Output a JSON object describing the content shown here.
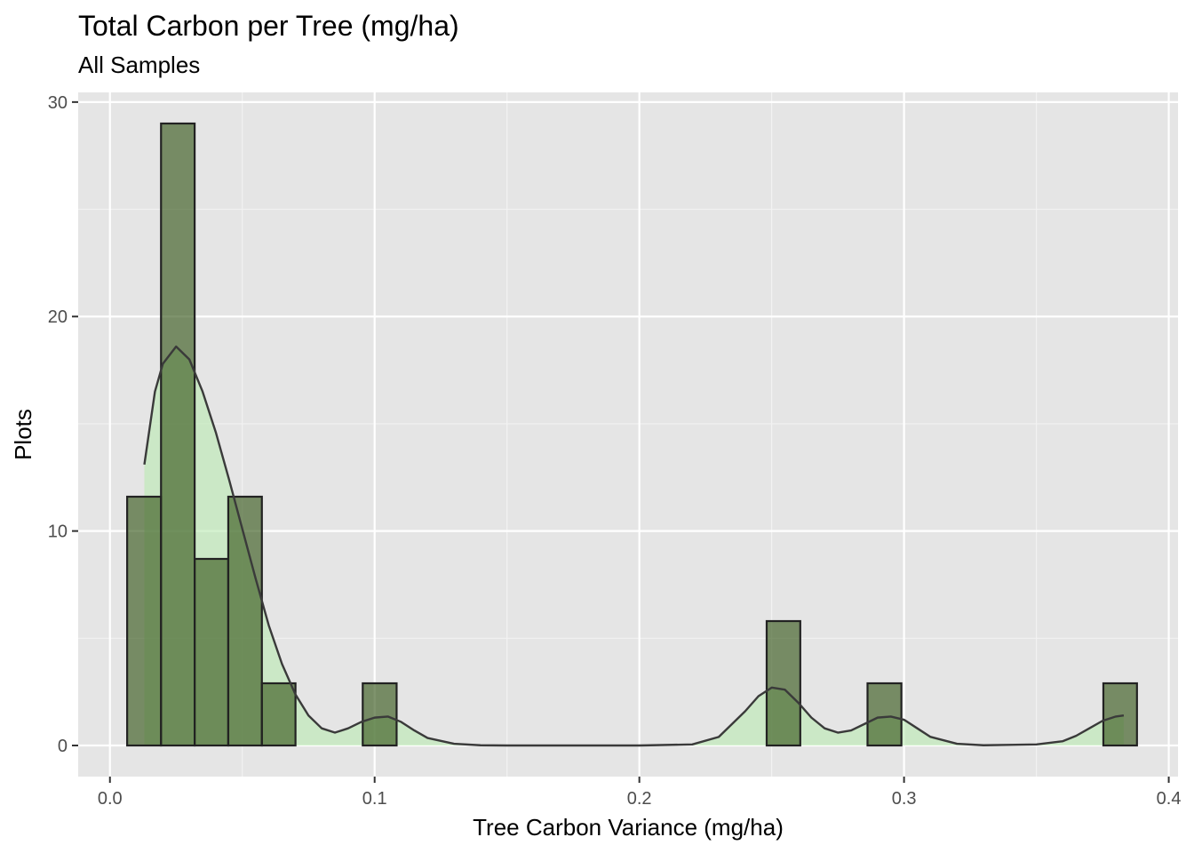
{
  "chart_data": {
    "type": "histogram",
    "title": "Total Carbon per Tree (mg/ha)",
    "subtitle": "All Samples",
    "xlabel": "Tree Carbon Variance (mg/ha)",
    "ylabel": "Plots",
    "xlim": [
      -0.012,
      0.4035
    ],
    "ylim": [
      -1.45,
      30.45
    ],
    "x_ticks": [
      0.0,
      0.1,
      0.2,
      0.3,
      0.4
    ],
    "x_tick_labels": [
      "0.0",
      "0.1",
      "0.2",
      "0.3",
      "0.4"
    ],
    "y_ticks": [
      0,
      10,
      20,
      30
    ],
    "y_tick_labels": [
      "0",
      "10",
      "20",
      "30"
    ],
    "grid": true,
    "bins": [
      {
        "x0": 0.0065,
        "x1": 0.0193,
        "count": 11.6
      },
      {
        "x0": 0.0193,
        "x1": 0.032,
        "count": 29.0
      },
      {
        "x0": 0.032,
        "x1": 0.0447,
        "count": 8.7
      },
      {
        "x0": 0.0447,
        "x1": 0.0574,
        "count": 11.6
      },
      {
        "x0": 0.0574,
        "x1": 0.0701,
        "count": 2.9
      },
      {
        "x0": 0.0955,
        "x1": 0.1083,
        "count": 2.9
      },
      {
        "x0": 0.2481,
        "x1": 0.2608,
        "count": 5.8
      },
      {
        "x0": 0.2862,
        "x1": 0.299,
        "count": 2.9
      },
      {
        "x0": 0.3753,
        "x1": 0.388,
        "count": 2.9
      }
    ],
    "density_curve": {
      "x": [
        0.013,
        0.017,
        0.02,
        0.025,
        0.03,
        0.035,
        0.04,
        0.045,
        0.05,
        0.055,
        0.06,
        0.065,
        0.07,
        0.075,
        0.08,
        0.085,
        0.09,
        0.095,
        0.1,
        0.105,
        0.11,
        0.115,
        0.12,
        0.13,
        0.14,
        0.15,
        0.2,
        0.22,
        0.23,
        0.24,
        0.245,
        0.25,
        0.255,
        0.26,
        0.265,
        0.27,
        0.275,
        0.28,
        0.285,
        0.29,
        0.295,
        0.3,
        0.305,
        0.31,
        0.32,
        0.33,
        0.35,
        0.36,
        0.365,
        0.37,
        0.375,
        0.38,
        0.383
      ],
      "y": [
        13.1,
        16.5,
        17.8,
        18.6,
        18.0,
        16.5,
        14.6,
        12.4,
        10.1,
        7.8,
        5.6,
        3.8,
        2.4,
        1.4,
        0.8,
        0.6,
        0.8,
        1.1,
        1.3,
        1.35,
        1.1,
        0.7,
        0.35,
        0.08,
        0.01,
        0.0,
        0.0,
        0.05,
        0.4,
        1.6,
        2.3,
        2.7,
        2.6,
        2.0,
        1.3,
        0.8,
        0.6,
        0.7,
        1.0,
        1.3,
        1.35,
        1.2,
        0.8,
        0.4,
        0.08,
        0.01,
        0.05,
        0.2,
        0.45,
        0.8,
        1.15,
        1.35,
        1.4
      ]
    },
    "colors": {
      "panel_background": "#e5e5e5",
      "grid_major": "#ffffff",
      "grid_minor": "#f2f2f2",
      "bar_fill": "#3b5a1e",
      "bar_fill_opacity": 0.65,
      "bar_stroke": "#222222",
      "density_fill": "#b9e9b0",
      "density_fill_opacity": 0.6,
      "density_line": "#3a3a3a",
      "tick_text": "#4d4d4d"
    }
  }
}
